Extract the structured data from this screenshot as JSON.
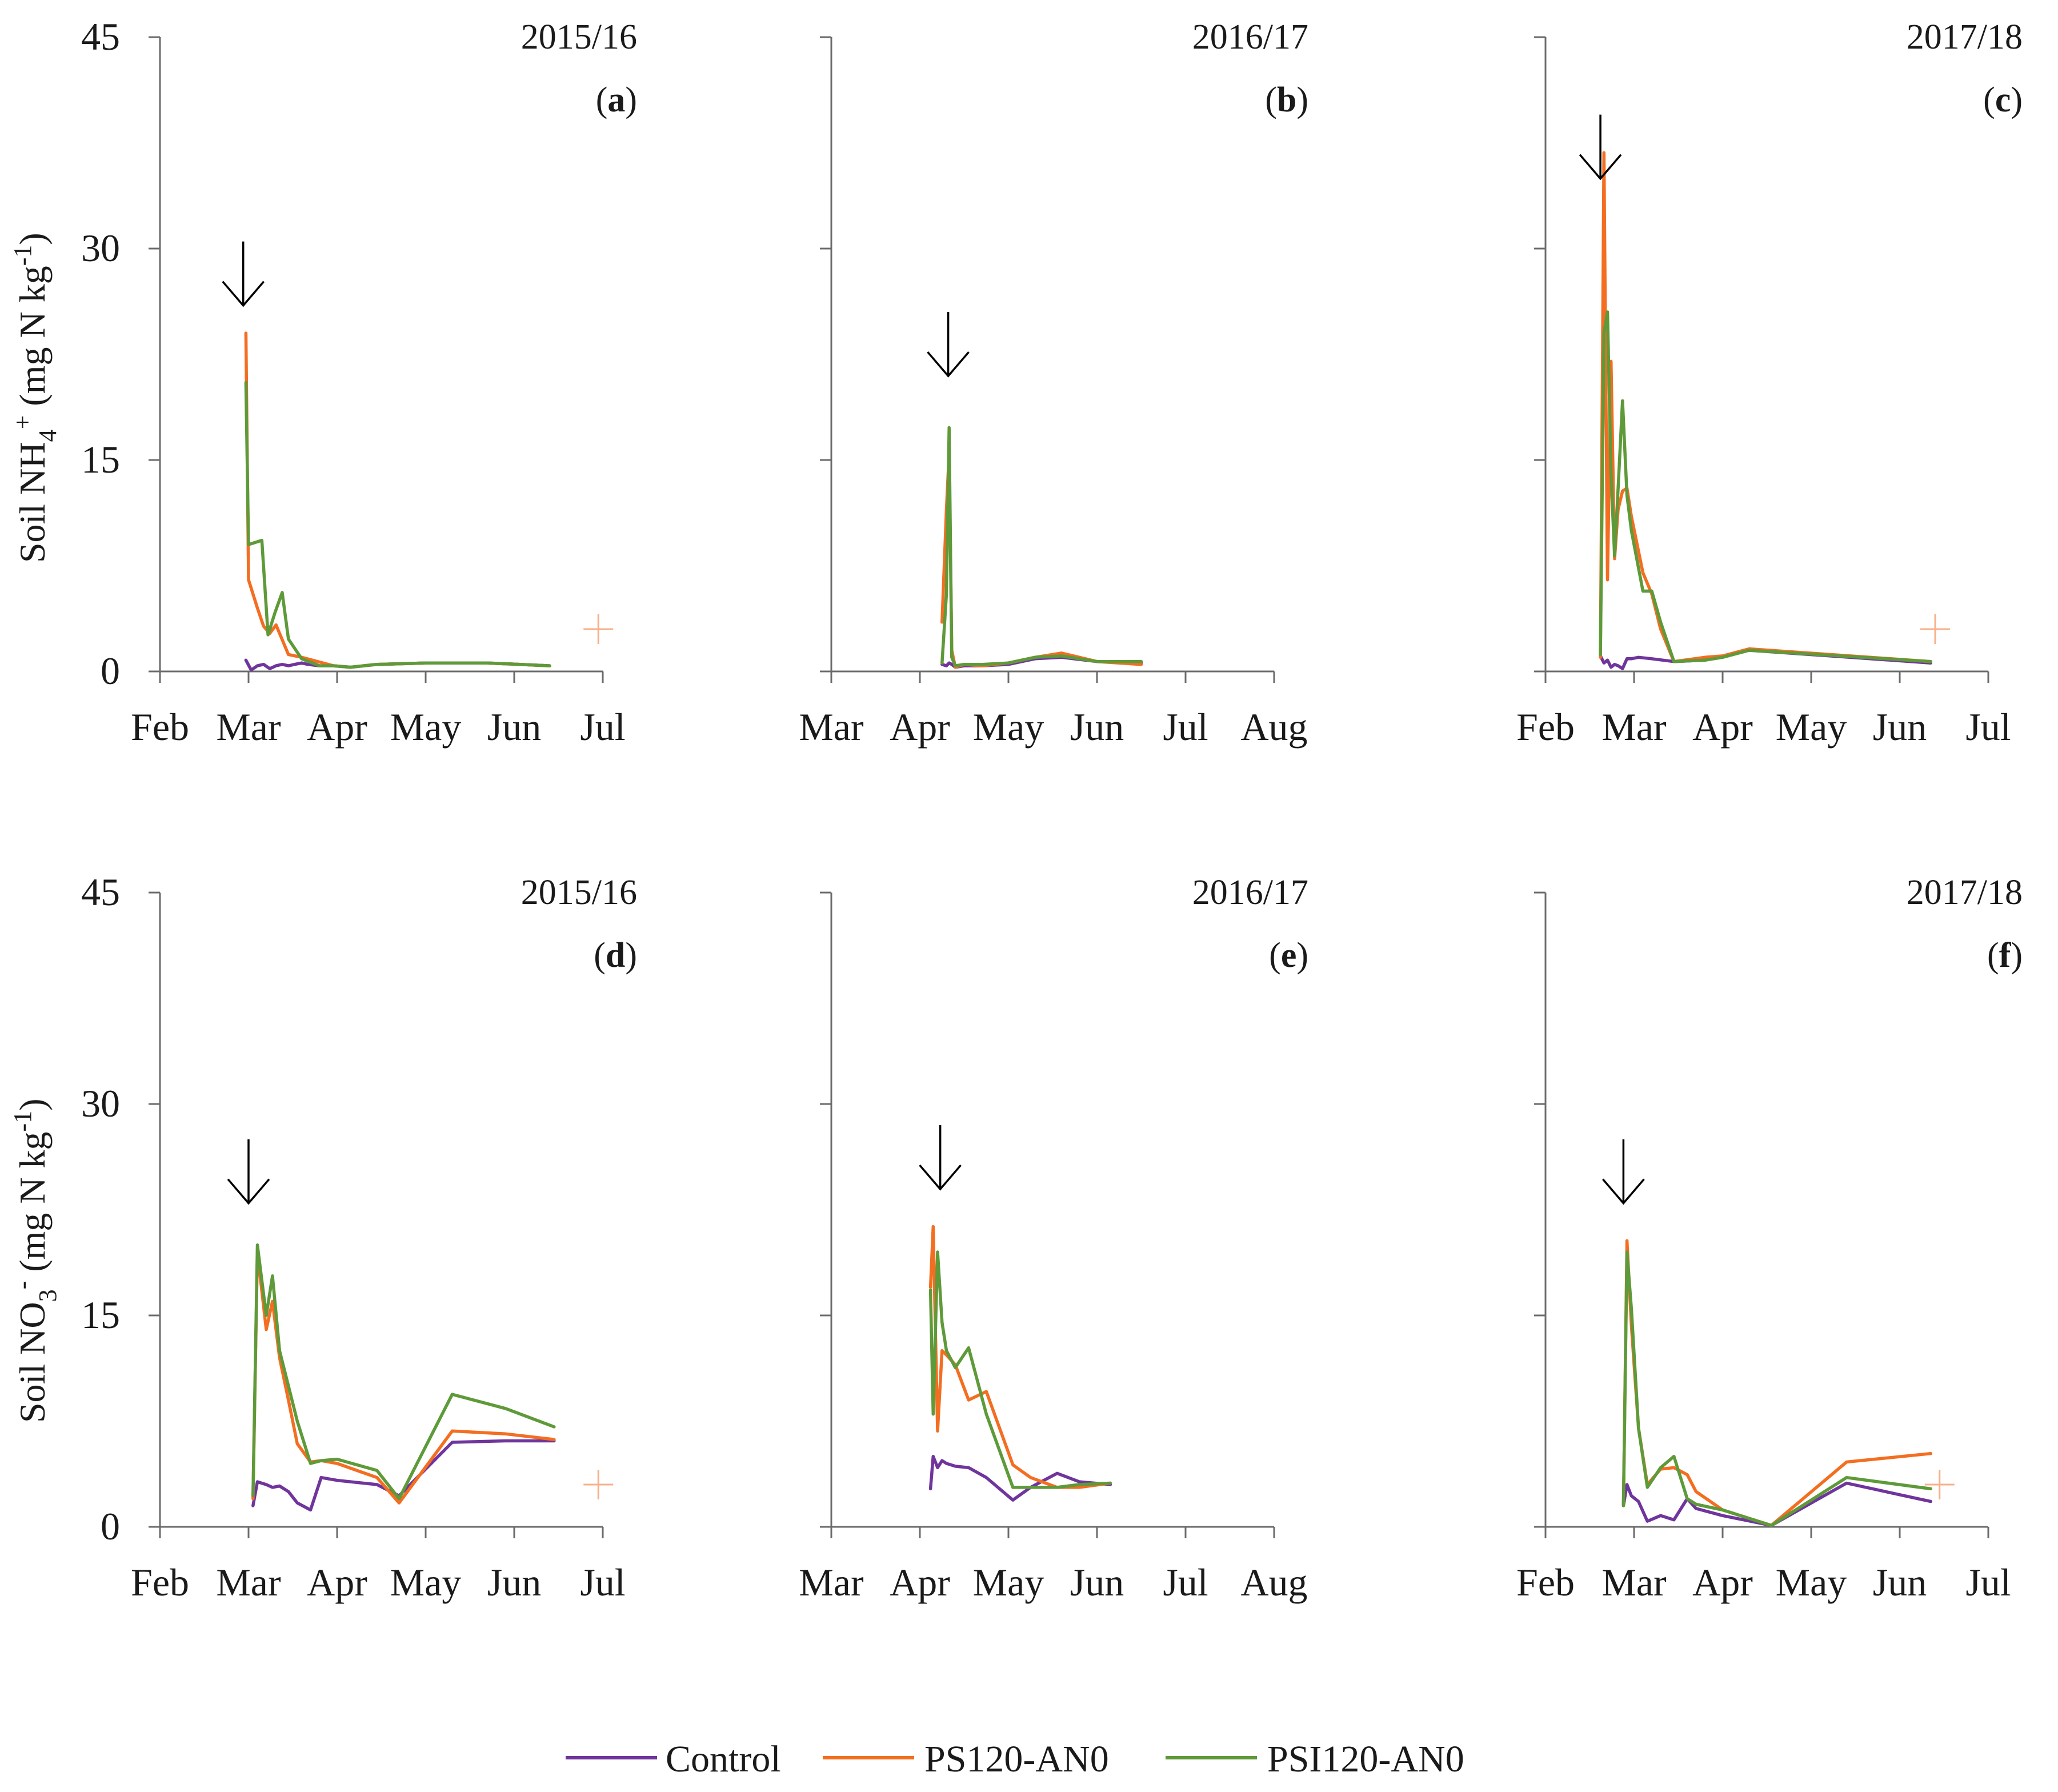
{
  "colors": {
    "control": "#70359c",
    "ps": "#f36e21",
    "psi": "#5e9a39",
    "axis": "#6b6b6b",
    "plus": "#f8b08a"
  },
  "legend": [
    {
      "key": "control",
      "label": "Control"
    },
    {
      "key": "ps",
      "label": "PS120-AN0"
    },
    {
      "key": "psi",
      "label": "PSI120-AN0"
    }
  ],
  "y_axis": {
    "top_label_main": "Soil NH",
    "top_label_sub": "4",
    "top_label_sup": "+",
    "top_label_unit": " (mg N kg",
    "top_label_unit_sup": "-1",
    "top_label_end": ")",
    "bottom_label_main": "Soil NO",
    "bottom_label_sub": "3",
    "bottom_label_sup": "-",
    "bottom_label_unit": "  (mg N kg",
    "bottom_label_unit_sup": "-1",
    "bottom_label_end": ")"
  },
  "chart_data": [
    {
      "id": "a",
      "type": "line",
      "row": 0,
      "col": 0,
      "title": "2015/16",
      "panel_label": "a",
      "ylim": [
        0,
        45
      ],
      "yticks": [
        "0",
        "15",
        "30",
        "45"
      ],
      "xlim": [
        0,
        5
      ],
      "xticks": [
        "Feb",
        "Mar",
        "Apr",
        "May",
        "Jun",
        "Jul"
      ],
      "arrow_x": 0.94,
      "arrow_y": 30.5,
      "plus": {
        "x": 4.95,
        "y": 3
      },
      "series": [
        {
          "name": "Control",
          "key": "control",
          "x": [
            0.97,
            1.03,
            1.1,
            1.17,
            1.24,
            1.31,
            1.38,
            1.45,
            1.52,
            1.6,
            1.67,
            1.8,
            1.96,
            2.15,
            2.45,
            3.0,
            3.7,
            4.4
          ],
          "y": [
            0.8,
            0.1,
            0.4,
            0.5,
            0.2,
            0.4,
            0.5,
            0.4,
            0.5,
            0.6,
            0.5,
            0.4,
            0.4,
            0.3,
            0.5,
            0.6,
            0.6,
            0.4
          ]
        },
        {
          "name": "PS120-AN0",
          "key": "ps",
          "x": [
            0.97,
            1.0,
            1.1,
            1.17,
            1.24,
            1.31,
            1.45,
            1.6,
            1.96,
            2.15,
            2.45,
            3.0,
            3.7,
            4.4
          ],
          "y": [
            24,
            6.5,
            4.5,
            3.2,
            2.7,
            3.3,
            1.2,
            1.0,
            0.4,
            0.3,
            0.5,
            0.6,
            0.6,
            0.4
          ]
        },
        {
          "name": "PSI120-AN0",
          "key": "psi",
          "x": [
            0.97,
            1.0,
            1.15,
            1.22,
            1.3,
            1.38,
            1.45,
            1.6,
            1.8,
            1.96,
            2.15,
            2.45,
            3.0,
            3.7,
            4.4
          ],
          "y": [
            20.5,
            9.0,
            9.3,
            2.6,
            4.2,
            5.6,
            2.3,
            0.9,
            0.4,
            0.4,
            0.3,
            0.5,
            0.6,
            0.6,
            0.4
          ]
        }
      ]
    },
    {
      "id": "b",
      "type": "line",
      "row": 0,
      "col": 1,
      "title": "2016/17",
      "panel_label": "b",
      "ylim": [
        0,
        45
      ],
      "yticks": [
        "0",
        "15",
        "30",
        "45"
      ],
      "xlim": [
        0,
        5
      ],
      "xticks": [
        "Mar",
        "Apr",
        "May",
        "Jun",
        "Jul",
        "Aug"
      ],
      "arrow_x": 1.32,
      "arrow_y": 25.5,
      "series": [
        {
          "name": "Control",
          "key": "control",
          "x": [
            1.25,
            1.3,
            1.33,
            1.36,
            1.4,
            1.5,
            1.7,
            2.0,
            2.3,
            2.6,
            3.0,
            3.5
          ],
          "y": [
            0.5,
            0.4,
            0.6,
            0.5,
            0.3,
            0.4,
            0.4,
            0.5,
            0.9,
            1.0,
            0.7,
            0.6
          ]
        },
        {
          "name": "PS120-AN0",
          "key": "ps",
          "x": [
            1.25,
            1.3,
            1.33,
            1.36,
            1.4,
            1.5,
            1.7,
            2.0,
            2.3,
            2.6,
            3.0,
            3.5
          ],
          "y": [
            3.5,
            11.5,
            15.5,
            1.5,
            0.3,
            0.5,
            0.4,
            0.6,
            1.0,
            1.3,
            0.7,
            0.5
          ]
        },
        {
          "name": "PSI120-AN0",
          "key": "psi",
          "x": [
            1.25,
            1.3,
            1.33,
            1.36,
            1.4,
            1.5,
            1.7,
            2.0,
            2.3,
            2.6,
            3.0,
            3.5
          ],
          "y": [
            0.6,
            5.5,
            17.3,
            1.0,
            0.4,
            0.5,
            0.5,
            0.6,
            1.0,
            1.1,
            0.7,
            0.7
          ]
        }
      ]
    },
    {
      "id": "c",
      "type": "line",
      "row": 0,
      "col": 2,
      "title": "2017/18",
      "panel_label": "c",
      "ylim": [
        0,
        45
      ],
      "yticks": [
        "0",
        "15",
        "30",
        "45"
      ],
      "xlim": [
        0,
        5
      ],
      "xticks": [
        "Feb",
        "Mar",
        "Apr",
        "May",
        "Jun",
        "Jul"
      ],
      "arrow_x": 0.62,
      "arrow_y": 39.5,
      "plus": {
        "x": 4.4,
        "y": 3
      },
      "series": [
        {
          "name": "Control",
          "key": "control",
          "x": [
            0.62,
            0.66,
            0.7,
            0.74,
            0.78,
            0.82,
            0.87,
            0.92,
            0.97,
            1.05,
            1.2,
            1.45,
            1.8,
            2.3,
            4.35
          ],
          "y": [
            1.1,
            0.6,
            0.8,
            0.3,
            0.5,
            0.4,
            0.2,
            0.9,
            0.9,
            1.0,
            0.9,
            0.7,
            0.8,
            1.5,
            0.6
          ]
        },
        {
          "name": "PS120-AN0",
          "key": "ps",
          "x": [
            0.62,
            0.66,
            0.7,
            0.74,
            0.78,
            0.82,
            0.87,
            0.92,
            0.97,
            1.1,
            1.2,
            1.3,
            1.45,
            1.8,
            2.0,
            2.3,
            4.35
          ],
          "y": [
            1.0,
            36.8,
            6.5,
            22.0,
            8.0,
            11.5,
            12.8,
            13.0,
            11.0,
            7.0,
            5.5,
            3.0,
            0.7,
            1.0,
            1.1,
            1.6,
            0.7
          ]
        },
        {
          "name": "PSI120-AN0",
          "key": "psi",
          "x": [
            0.62,
            0.66,
            0.7,
            0.74,
            0.78,
            0.82,
            0.87,
            0.92,
            0.97,
            1.1,
            1.2,
            1.3,
            1.45,
            1.8,
            2.0,
            2.3,
            4.35
          ],
          "y": [
            1.2,
            24.0,
            25.5,
            14.0,
            8.2,
            13.0,
            19.2,
            12.5,
            10.0,
            5.7,
            5.7,
            3.5,
            0.7,
            0.8,
            1.0,
            1.5,
            0.7
          ]
        }
      ]
    },
    {
      "id": "d",
      "type": "line",
      "row": 1,
      "col": 0,
      "title": "2015/16",
      "panel_label": "d",
      "ylim": [
        0,
        45
      ],
      "yticks": [
        "0",
        "15",
        "30",
        "45"
      ],
      "xlim": [
        0,
        5
      ],
      "xticks": [
        "Feb",
        "Mar",
        "Apr",
        "May",
        "Jun",
        "Jul"
      ],
      "arrow_x": 1.0,
      "arrow_y": 27.5,
      "plus": {
        "x": 4.95,
        "y": 3
      },
      "series": [
        {
          "name": "Control",
          "key": "control",
          "x": [
            1.05,
            1.1,
            1.2,
            1.27,
            1.35,
            1.45,
            1.55,
            1.7,
            1.82,
            2.0,
            2.45,
            2.7,
            3.3,
            3.9,
            4.45
          ],
          "y": [
            1.5,
            3.2,
            3.0,
            2.8,
            2.9,
            2.5,
            1.7,
            1.2,
            3.5,
            3.3,
            3.0,
            2.2,
            6.0,
            6.1,
            6.1
          ]
        },
        {
          "name": "PS120-AN0",
          "key": "ps",
          "x": [
            1.05,
            1.1,
            1.2,
            1.27,
            1.35,
            1.45,
            1.55,
            1.7,
            1.82,
            2.0,
            2.45,
            2.7,
            3.3,
            3.9,
            4.45
          ],
          "y": [
            2.0,
            19.5,
            14.0,
            16.0,
            12.0,
            9.0,
            5.9,
            4.6,
            4.7,
            4.5,
            3.5,
            1.7,
            6.8,
            6.6,
            6.2
          ]
        },
        {
          "name": "PSI120-AN0",
          "key": "psi",
          "x": [
            1.05,
            1.1,
            1.2,
            1.27,
            1.35,
            1.45,
            1.55,
            1.7,
            1.82,
            2.0,
            2.45,
            2.7,
            3.3,
            3.9,
            4.45
          ],
          "y": [
            2.2,
            20.0,
            15.0,
            17.8,
            12.5,
            10.0,
            7.5,
            4.5,
            4.7,
            4.8,
            4.0,
            2.0,
            9.4,
            8.4,
            7.1
          ]
        }
      ]
    },
    {
      "id": "e",
      "type": "line",
      "row": 1,
      "col": 1,
      "title": "2016/17",
      "panel_label": "e",
      "ylim": [
        0,
        45
      ],
      "yticks": [
        "0",
        "15",
        "30",
        "45"
      ],
      "xlim": [
        0,
        5
      ],
      "xticks": [
        "Mar",
        "Apr",
        "May",
        "Jun",
        "Jul",
        "Aug"
      ],
      "arrow_x": 1.23,
      "arrow_y": 28.5,
      "series": [
        {
          "name": "Control",
          "key": "control",
          "x": [
            1.12,
            1.15,
            1.2,
            1.25,
            1.3,
            1.4,
            1.55,
            1.75,
            2.05,
            2.25,
            2.55,
            2.8,
            3.15
          ],
          "y": [
            2.7,
            5.0,
            4.2,
            4.7,
            4.5,
            4.3,
            4.2,
            3.5,
            1.9,
            2.8,
            3.8,
            3.2,
            3.0
          ]
        },
        {
          "name": "PS120-AN0",
          "key": "ps",
          "x": [
            1.12,
            1.15,
            1.2,
            1.25,
            1.3,
            1.4,
            1.55,
            1.75,
            2.05,
            2.25,
            2.55,
            2.8,
            3.15
          ],
          "y": [
            17.0,
            21.3,
            6.8,
            12.5,
            12.2,
            11.5,
            9.0,
            9.6,
            4.4,
            3.5,
            2.8,
            2.8,
            3.1
          ]
        },
        {
          "name": "PSI120-AN0",
          "key": "psi",
          "x": [
            1.12,
            1.15,
            1.2,
            1.25,
            1.3,
            1.4,
            1.55,
            1.75,
            2.05,
            2.25,
            2.55,
            2.8,
            3.15
          ],
          "y": [
            16.8,
            8.0,
            19.5,
            14.5,
            12.5,
            11.3,
            12.7,
            8.0,
            2.8,
            2.8,
            2.8,
            3.0,
            3.1
          ]
        }
      ]
    },
    {
      "id": "f",
      "type": "line",
      "row": 1,
      "col": 2,
      "title": "2017/18",
      "panel_label": "f",
      "ylim": [
        0,
        45
      ],
      "yticks": [
        "0",
        "15",
        "30",
        "45"
      ],
      "xlim": [
        0,
        5
      ],
      "xticks": [
        "Feb",
        "Mar",
        "Apr",
        "May",
        "Jun",
        "Jul"
      ],
      "arrow_x": 0.88,
      "arrow_y": 27.5,
      "plus": {
        "x": 4.45,
        "y": 3
      },
      "series": [
        {
          "name": "Control",
          "key": "control",
          "x": [
            0.88,
            0.92,
            0.97,
            1.05,
            1.15,
            1.3,
            1.45,
            1.6,
            1.7,
            2.0,
            2.55,
            3.4,
            4.35
          ],
          "y": [
            1.5,
            3.0,
            2.2,
            1.8,
            0.4,
            0.8,
            0.5,
            2.0,
            1.3,
            0.8,
            0.1,
            3.1,
            1.8
          ]
        },
        {
          "name": "PS120-AN0",
          "key": "ps",
          "x": [
            0.88,
            0.92,
            0.97,
            1.05,
            1.15,
            1.3,
            1.45,
            1.6,
            1.7,
            2.0,
            2.55,
            3.4,
            4.35
          ],
          "y": [
            1.5,
            20.3,
            14.3,
            7.0,
            3.0,
            4.1,
            4.2,
            3.7,
            2.5,
            1.2,
            0.1,
            4.6,
            5.2
          ]
        },
        {
          "name": "PSI120-AN0",
          "key": "psi",
          "x": [
            0.88,
            0.92,
            0.97,
            1.05,
            1.15,
            1.3,
            1.45,
            1.6,
            1.7,
            2.0,
            2.55,
            3.4,
            4.35
          ],
          "y": [
            1.5,
            19.5,
            15.5,
            7.0,
            2.8,
            4.2,
            5.0,
            2.0,
            1.6,
            1.2,
            0.1,
            3.5,
            2.7
          ]
        }
      ]
    }
  ]
}
